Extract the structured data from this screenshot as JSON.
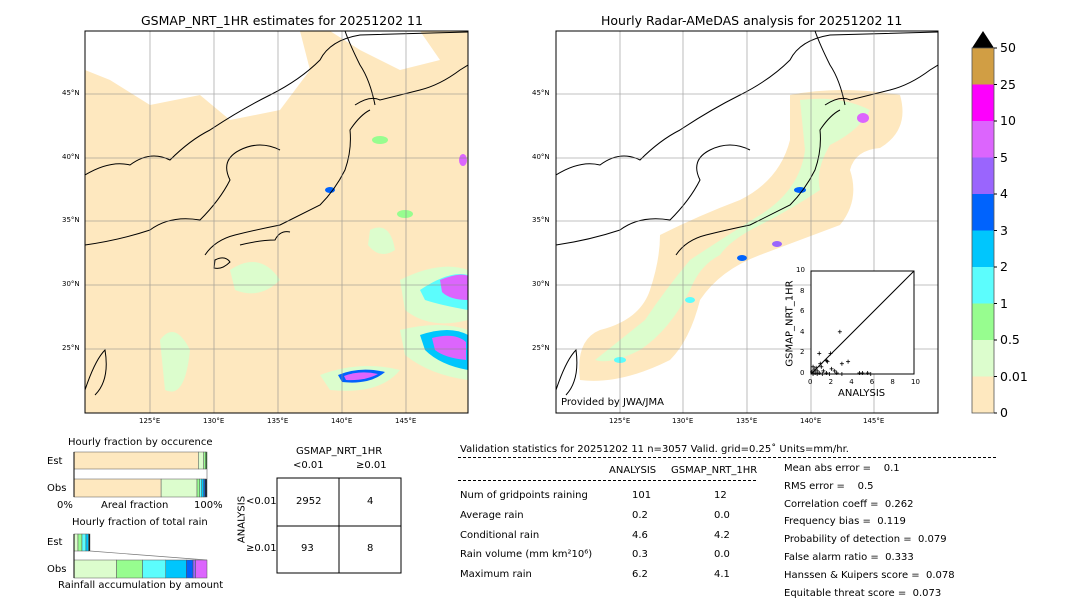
{
  "left_map": {
    "title": "GSMAP_NRT_1HR estimates for 20251202 11",
    "lon_labels": [
      "125°E",
      "130°E",
      "135°E",
      "140°E",
      "145°E"
    ],
    "lat_labels": [
      "45°N",
      "40°N",
      "35°N",
      "30°N",
      "25°N"
    ]
  },
  "right_map": {
    "title": "Hourly Radar-AMeDAS analysis for 20251202 11",
    "lon_labels": [
      "125°E",
      "130°E",
      "135°E",
      "140°E",
      "145°E"
    ],
    "lat_labels": [
      "45°N",
      "40°N",
      "35°N",
      "30°N",
      "25°N"
    ],
    "credit": "Provided by JWA/JMA"
  },
  "chart_data": [
    {
      "type": "scatter",
      "xlabel": "ANALYSIS",
      "ylabel": "GSMAP_NRT_1HR",
      "xlim": [
        0,
        10
      ],
      "ylim": [
        0,
        10
      ],
      "xticks": [
        "0",
        "2",
        "4",
        "6",
        "8",
        "10"
      ],
      "yticks": [
        "0",
        "2",
        "4",
        "6",
        "8",
        "10"
      ],
      "diagonal": true,
      "points": [
        [
          2.8,
          4.1
        ],
        [
          0.8,
          2.0
        ],
        [
          1.9,
          2.0
        ],
        [
          1.5,
          1.3
        ],
        [
          1.6,
          1.2
        ],
        [
          3.6,
          1.2
        ],
        [
          3.0,
          1.0
        ],
        [
          0.9,
          1.0
        ],
        [
          1.0,
          0.7
        ],
        [
          0.5,
          0.6
        ],
        [
          0.2,
          0.7
        ],
        [
          0.3,
          0.4
        ],
        [
          0.6,
          0.3
        ],
        [
          1.2,
          0.3
        ],
        [
          2.0,
          0.5
        ],
        [
          2.3,
          0.3
        ],
        [
          0.1,
          0.2
        ],
        [
          0.4,
          0.1
        ],
        [
          0.8,
          0.1
        ],
        [
          1.5,
          0.1
        ],
        [
          2.5,
          0.1
        ],
        [
          3.0,
          0.0
        ],
        [
          4.7,
          0.1
        ],
        [
          5.0,
          0.1
        ],
        [
          5.5,
          0.1
        ],
        [
          5.8,
          0.0
        ],
        [
          1.8,
          0.0
        ],
        [
          1.1,
          0.0
        ],
        [
          0.2,
          0.0
        ],
        [
          0.6,
          0.0
        ]
      ]
    },
    {
      "type": "colorbar",
      "ticks": [
        "0",
        "0.01",
        "0.5",
        "1",
        "2",
        "3",
        "4",
        "5",
        "10",
        "25",
        "50"
      ],
      "colors": [
        "#fee8bf",
        "#dcfdcd",
        "#97fd8f",
        "#5cfdfd",
        "#00c6fd",
        "#0063fd",
        "#9a65fd",
        "#dc65fd",
        "#fd00fd",
        "#d19e44"
      ],
      "extend_color": "#000000"
    },
    {
      "type": "bar",
      "title": "Hourly fraction by occurence",
      "categories": [
        "Est",
        "Obs"
      ],
      "xlabel": "Areal fraction",
      "xticks": [
        "0%",
        "100%"
      ],
      "segments": {
        "Est": [
          0.935,
          0.04,
          0.015,
          0.01
        ],
        "Obs": [
          0.655,
          0.27,
          0.02,
          0.015,
          0.015,
          0.01,
          0.015
        ]
      }
    },
    {
      "type": "bar",
      "title": "Hourly fraction of total rain",
      "categories": [
        "Est",
        "Obs"
      ],
      "xlabel": "Rainfall accumulation by amount",
      "segments": {
        "Est": [
          0.03,
          0.03,
          0.03,
          0.02,
          0.01
        ],
        "Obs": [
          0.32,
          0.195,
          0.175,
          0.155,
          0.05,
          0.02,
          0.085
        ]
      }
    }
  ],
  "contingency": {
    "col_title": "GSMAP_NRT_1HR",
    "row_title": "ANALYSIS",
    "col_labels": [
      "<0.01",
      "≥0.01"
    ],
    "row_labels": [
      "<0.01",
      "≥0.01"
    ],
    "cells": [
      [
        "2952",
        "4"
      ],
      [
        "93",
        "8"
      ]
    ]
  },
  "stats": {
    "header": "Validation statistics for 20251202 11  n=3057 Valid. grid=0.25˚ Units=mm/hr.",
    "col_analysis": "ANALYSIS",
    "col_gsmap": "GSMAP_NRT_1HR",
    "rows": [
      {
        "label": "Num of gridpoints raining",
        "a": "101",
        "g": "12"
      },
      {
        "label": "Average rain",
        "a": "0.2",
        "g": "0.0"
      },
      {
        "label": "Conditional rain",
        "a": "4.6",
        "g": "4.2"
      },
      {
        "label": "Rain volume (mm km²10⁶)",
        "a": "0.3",
        "g": "0.0"
      },
      {
        "label": "Maximum rain",
        "a": "6.2",
        "g": "4.1"
      }
    ],
    "scores": [
      "Mean abs error =    0.1",
      "RMS error =    0.5",
      "Correlation coeff =  0.262",
      "Frequency bias =  0.119",
      "Probability of detection =  0.079",
      "False alarm ratio =  0.333",
      "Hanssen & Kuipers score =  0.078",
      "Equitable threat score =  0.073"
    ]
  }
}
